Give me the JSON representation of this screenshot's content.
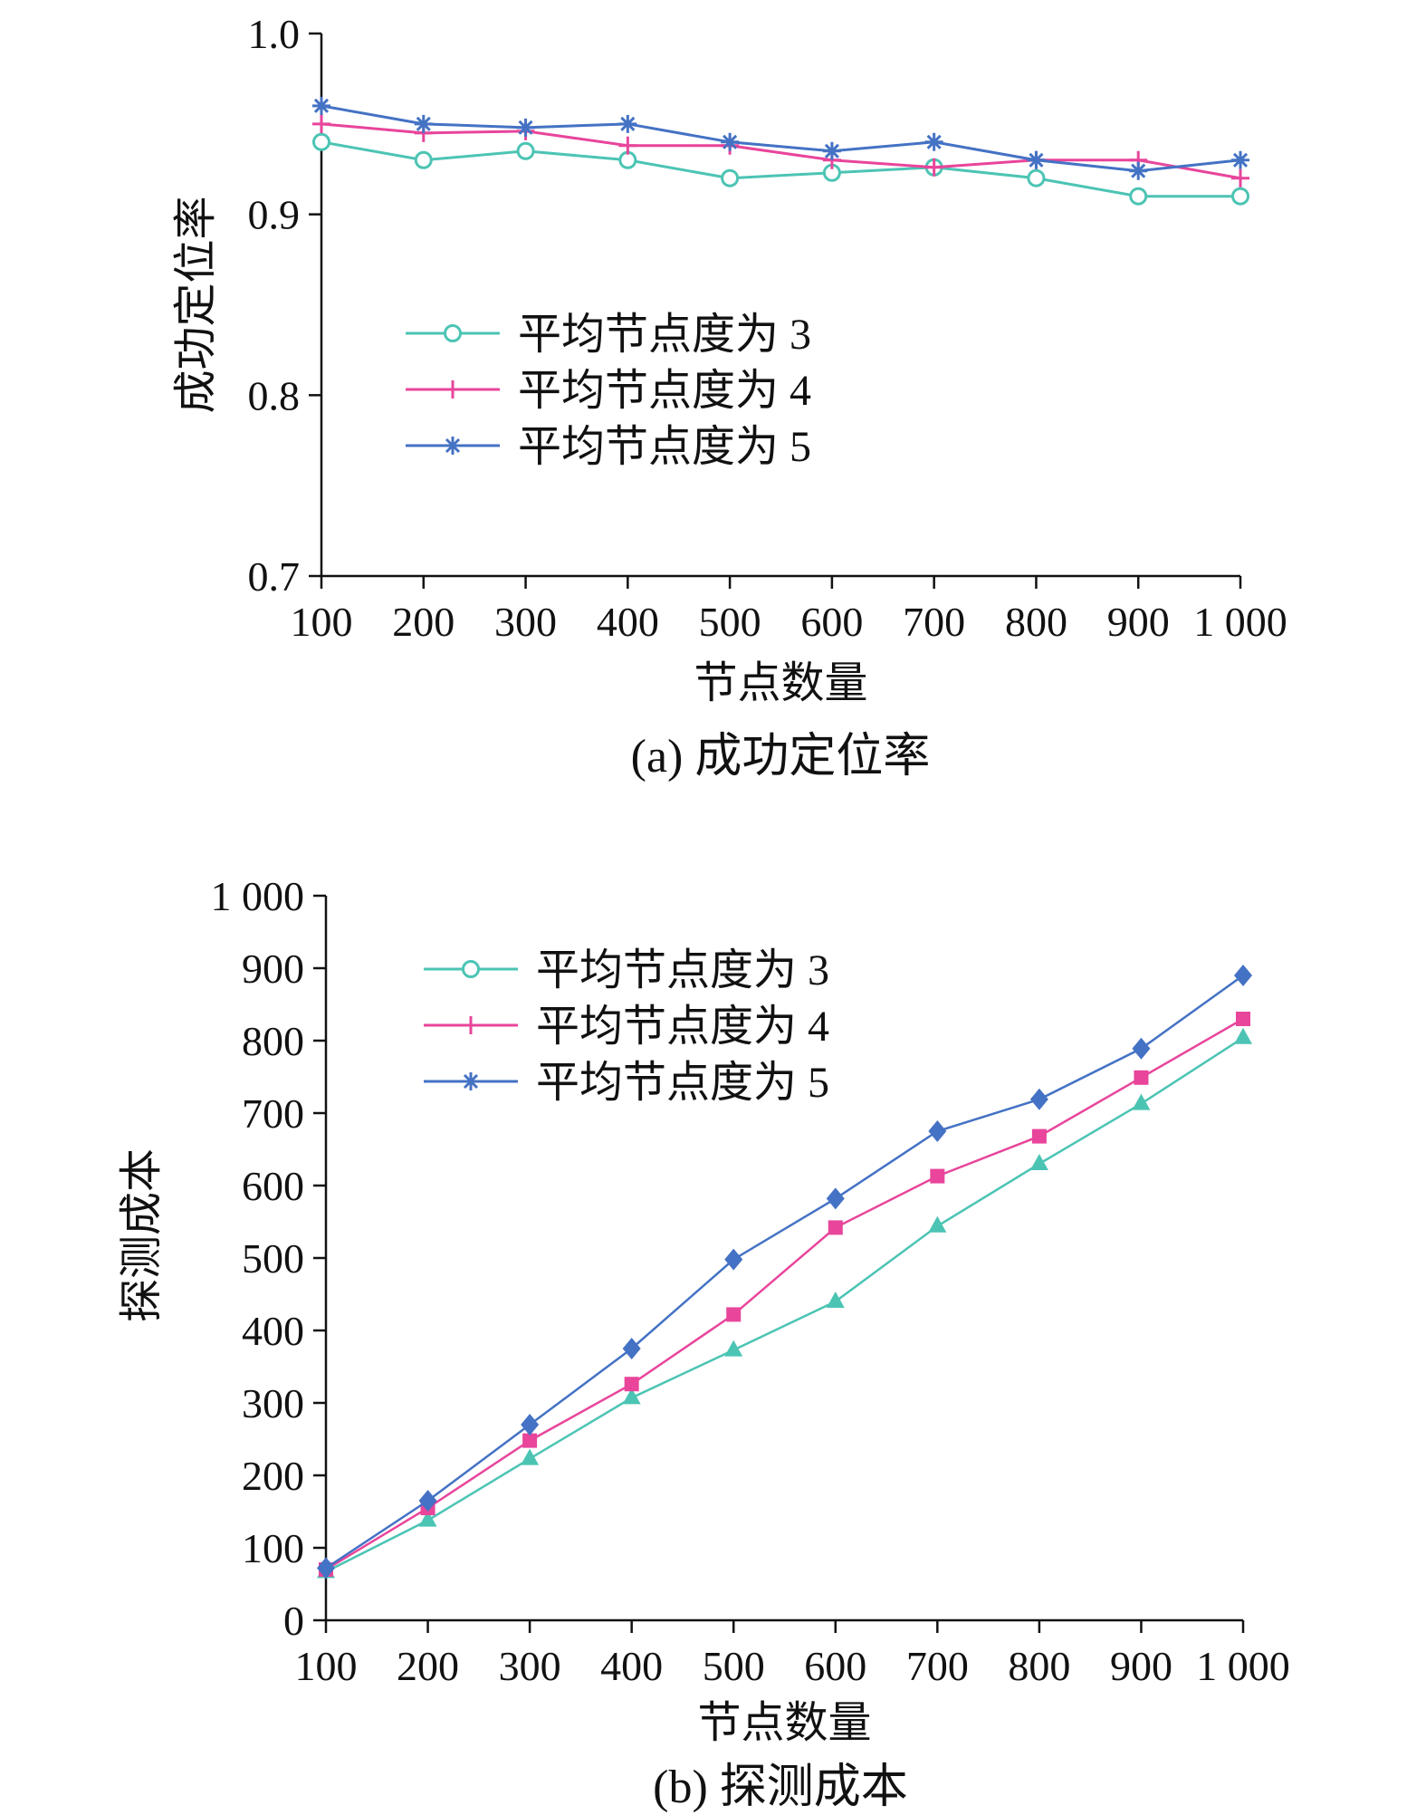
{
  "colors": {
    "s3": "#4cc4b4",
    "s4": "#e8459b",
    "s5": "#4472c4",
    "axis": "#111111"
  },
  "chart_data": [
    {
      "type": "line",
      "caption": "(a) 成功定位率",
      "xlabel": "节点数量",
      "ylabel": "成功定位率",
      "x": [
        100,
        200,
        300,
        400,
        500,
        600,
        700,
        800,
        900,
        1000
      ],
      "xtick_labels": [
        "100",
        "200",
        "300",
        "400",
        "500",
        "600",
        "700",
        "800",
        "900",
        "1 000"
      ],
      "ylim": [
        0.7,
        1.0
      ],
      "yticks": [
        0.7,
        0.8,
        0.9,
        1.0
      ],
      "ytick_labels": [
        "0.7",
        "0.8",
        "0.9",
        "1.0"
      ],
      "legend": "center-left",
      "grid": false,
      "series": [
        {
          "name": "平均节点度为 3",
          "marker": "circle",
          "color": "#4cc4b4",
          "values": [
            0.94,
            0.93,
            0.935,
            0.93,
            0.92,
            0.923,
            0.926,
            0.92,
            0.91,
            0.91
          ]
        },
        {
          "name": "平均节点度为 4",
          "marker": "plus",
          "color": "#e8459b",
          "values": [
            0.95,
            0.945,
            0.946,
            0.938,
            0.938,
            0.93,
            0.926,
            0.93,
            0.93,
            0.92
          ]
        },
        {
          "name": "平均节点度为 5",
          "marker": "asterisk",
          "color": "#4472c4",
          "values": [
            0.96,
            0.95,
            0.948,
            0.95,
            0.94,
            0.935,
            0.94,
            0.93,
            0.924,
            0.93
          ]
        }
      ]
    },
    {
      "type": "line",
      "caption": "(b) 探测成本",
      "xlabel": "节点数量",
      "ylabel": "探测成本",
      "x": [
        100,
        200,
        300,
        400,
        500,
        600,
        700,
        800,
        900,
        1000
      ],
      "xtick_labels": [
        "100",
        "200",
        "300",
        "400",
        "500",
        "600",
        "700",
        "800",
        "900",
        "1 000"
      ],
      "ylim": [
        0,
        1000
      ],
      "yticks": [
        0,
        100,
        200,
        300,
        400,
        500,
        600,
        700,
        800,
        900,
        1000
      ],
      "ytick_labels": [
        "0",
        "100",
        "200",
        "300",
        "400",
        "500",
        "600",
        "700",
        "800",
        "900",
        "1 000"
      ],
      "legend": "top-left",
      "grid": false,
      "series": [
        {
          "name": "平均节点度为 3",
          "marker": "circle",
          "plot_marker": "triangle",
          "color": "#4cc4b4",
          "values": [
            67,
            138,
            223,
            307,
            373,
            440,
            544,
            630,
            713,
            804
          ]
        },
        {
          "name": "平均节点度为 4",
          "marker": "plus",
          "plot_marker": "square",
          "color": "#e8459b",
          "values": [
            70,
            155,
            248,
            326,
            422,
            542,
            613,
            668,
            749,
            830
          ]
        },
        {
          "name": "平均节点度为 5",
          "marker": "asterisk",
          "plot_marker": "diamond",
          "color": "#4472c4",
          "values": [
            72,
            165,
            270,
            375,
            498,
            582,
            675,
            719,
            789,
            890
          ]
        }
      ]
    }
  ]
}
